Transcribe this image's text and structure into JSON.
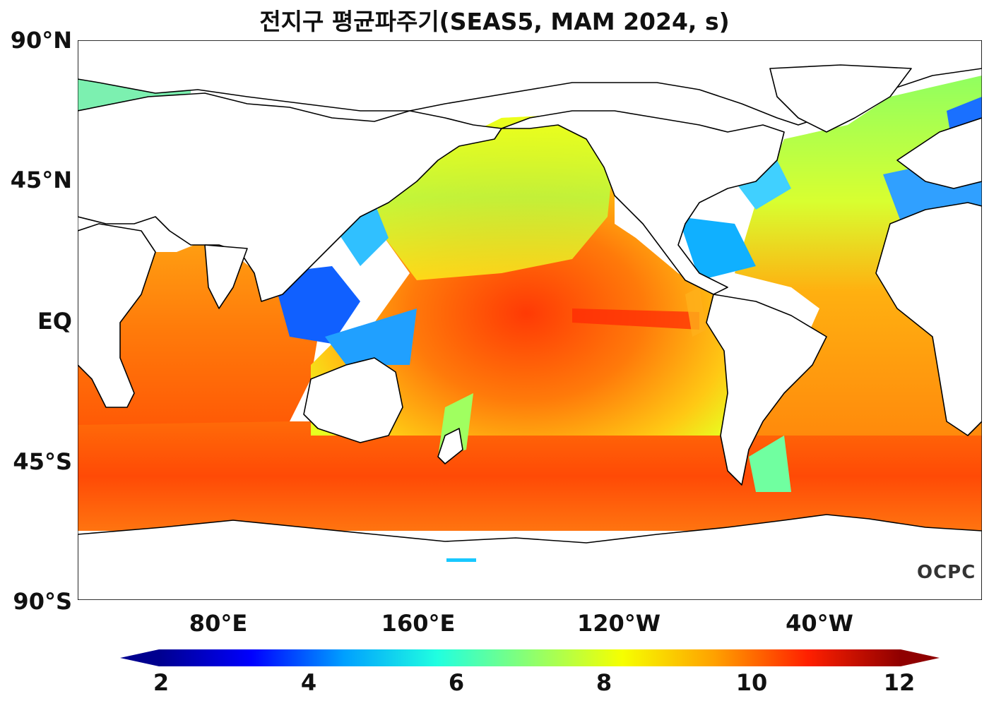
{
  "title": "전지구 평균파주기(SEAS5, MAM 2024, s)",
  "lat_labels": [
    "90°N",
    "45°N",
    "EQ",
    "45°S",
    "90°S"
  ],
  "lon_labels": [
    "80°E",
    "160°E",
    "120°W",
    "40°W"
  ],
  "colorbar": {
    "ticks": [
      "2",
      "4",
      "6",
      "8",
      "10",
      "12"
    ],
    "colors": [
      "#00008f",
      "#0000ff",
      "#00a0ff",
      "#20ffe0",
      "#8cff70",
      "#f6ff00",
      "#ffa000",
      "#ff2000",
      "#8f0000"
    ]
  },
  "logo": "OCPC",
  "colors": {
    "ocean_deep": "#ff5a0a",
    "ocean_mid": "#ff9a10",
    "tropics": "#ffe81a",
    "coastal": "#17a0ff",
    "land": "#ffffff",
    "coastline": "#000000"
  }
}
